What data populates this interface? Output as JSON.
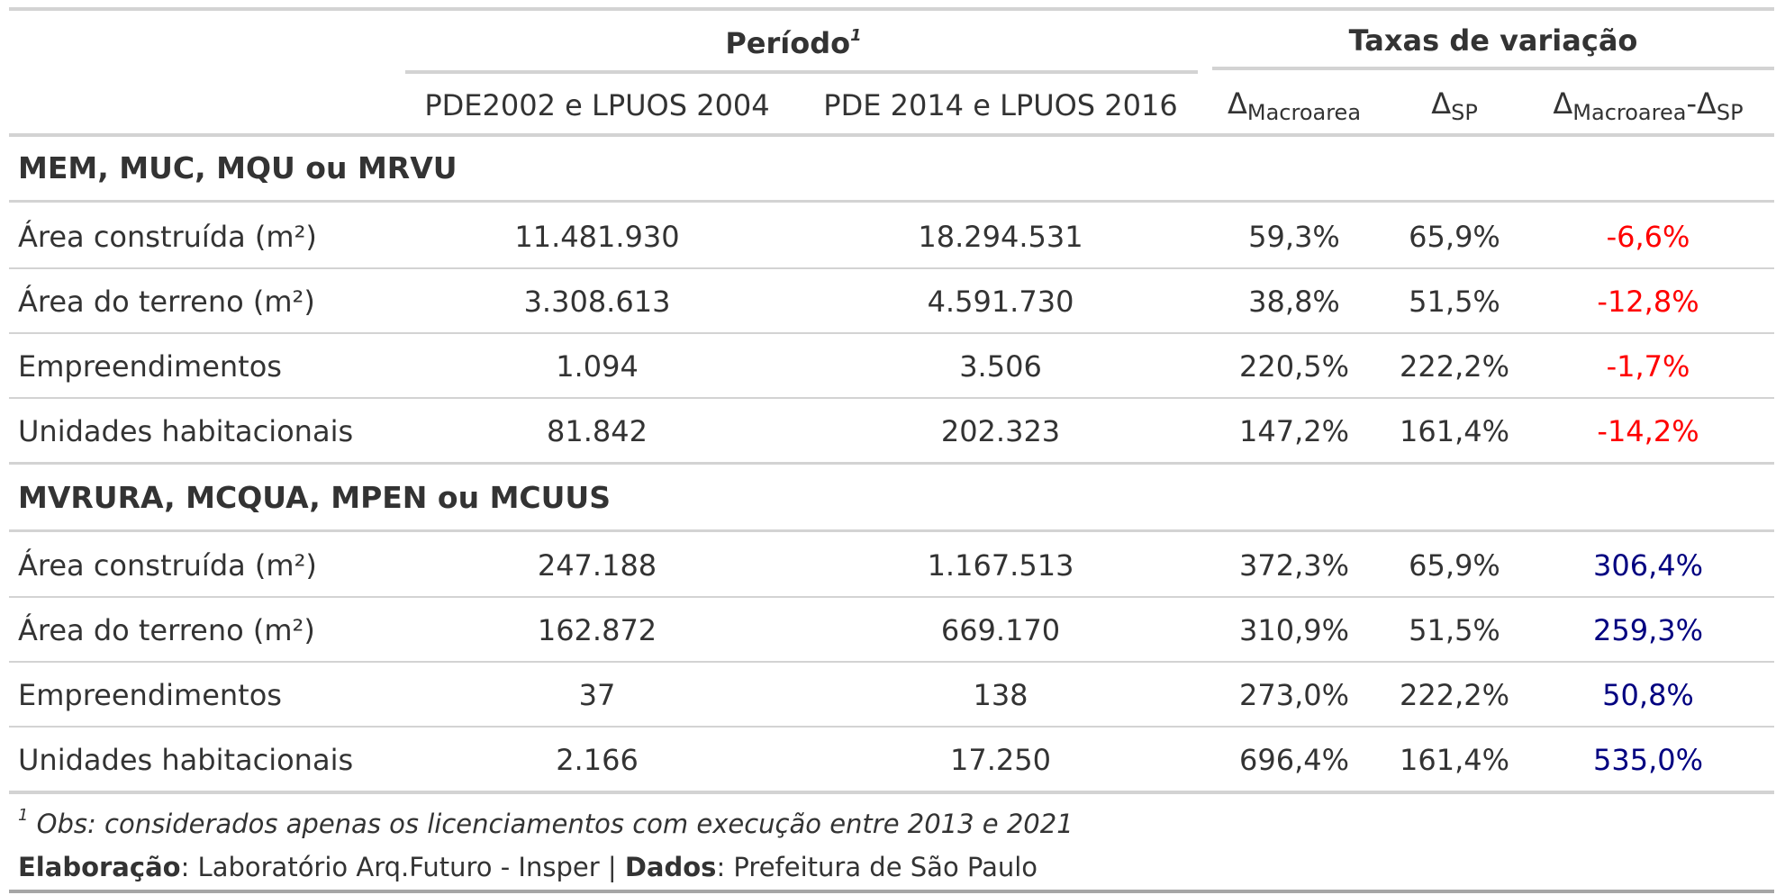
{
  "header": {
    "periodo_label": "Período",
    "periodo_sup": "1",
    "taxas_label": "Taxas de variação",
    "col_pde2002": "PDE2002 e LPUOS 2004",
    "col_pde2014": "PDE 2014 e LPUOS 2016",
    "delta": "Δ",
    "sub_macroarea": "Macroarea",
    "sub_sp": "SP",
    "dash": "-"
  },
  "groups": [
    {
      "title": "MEM, MUC, MQU ou MRVU",
      "rows": [
        {
          "label": "Área construída (m²)",
          "pde2002": "11.481.930",
          "pde2014": "18.294.531",
          "d_macro": "59,3%",
          "d_sp": "65,9%",
          "diff": "-6,6%"
        },
        {
          "label": "Área do terreno (m²)",
          "pde2002": "3.308.613",
          "pde2014": "4.591.730",
          "d_macro": "38,8%",
          "d_sp": "51,5%",
          "diff": "-12,8%"
        },
        {
          "label": "Empreendimentos",
          "pde2002": "1.094",
          "pde2014": "3.506",
          "d_macro": "220,5%",
          "d_sp": "222,2%",
          "diff": "-1,7%"
        },
        {
          "label": "Unidades habitacionais",
          "pde2002": "81.842",
          "pde2014": "202.323",
          "d_macro": "147,2%",
          "d_sp": "161,4%",
          "diff": "-14,2%"
        }
      ]
    },
    {
      "title": "MVRURA, MCQUA, MPEN ou MCUUS",
      "rows": [
        {
          "label": "Área construída (m²)",
          "pde2002": "247.188",
          "pde2014": "1.167.513",
          "d_macro": "372,3%",
          "d_sp": "65,9%",
          "diff": "306,4%"
        },
        {
          "label": "Área do terreno (m²)",
          "pde2002": "162.872",
          "pde2014": "669.170",
          "d_macro": "310,9%",
          "d_sp": "51,5%",
          "diff": "259,3%"
        },
        {
          "label": "Empreendimentos",
          "pde2002": "37",
          "pde2014": "138",
          "d_macro": "273,0%",
          "d_sp": "222,2%",
          "diff": "50,8%"
        },
        {
          "label": "Unidades habitacionais",
          "pde2002": "2.166",
          "pde2014": "17.250",
          "d_macro": "696,4%",
          "d_sp": "161,4%",
          "diff": "535,0%"
        }
      ]
    }
  ],
  "footer": {
    "note_sup": "1",
    "note": "Obs: considerados apenas os licenciamentos com execução entre 2013 e 2021",
    "elab_label": "Elaboração",
    "elab_text": ": Laboratório Arq.Futuro - Insper | ",
    "dados_label": "Dados",
    "dados_text": ": Prefeitura de São Paulo"
  },
  "colors": {
    "negative": "#ff0000",
    "positive": "#000080",
    "text": "#333333",
    "rule": "#d3d3d3"
  }
}
